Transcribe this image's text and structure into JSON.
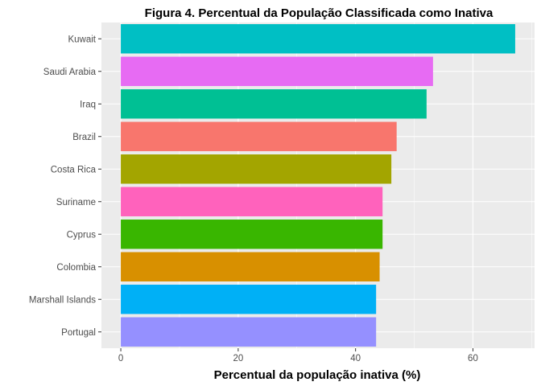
{
  "chart_data": {
    "type": "bar",
    "orientation": "horizontal",
    "title": "Figura 4. Percentual da População Classificada como Inativa",
    "xlabel": "Percentual da população inativa (%)",
    "ylabel": "",
    "categories": [
      "Kuwait",
      "Saudi Arabia",
      "Iraq",
      "Brazil",
      "Costa Rica",
      "Suriname",
      "Cyprus",
      "Colombia",
      "Marshall Islands",
      "Portugal"
    ],
    "values": [
      67.2,
      53.2,
      52.1,
      47.0,
      46.1,
      44.6,
      44.6,
      44.1,
      43.5,
      43.5
    ],
    "colors": [
      "#00BFC4",
      "#E76BF3",
      "#00C094",
      "#F8766D",
      "#A3A500",
      "#FF62BC",
      "#39B600",
      "#D89000",
      "#00B0F6",
      "#9590FF"
    ],
    "xlim": [
      -3.3,
      70.5
    ],
    "xticks": [
      0,
      20,
      40,
      60
    ],
    "grid": true,
    "legend": "none",
    "panel_background": "#EBEBEB"
  }
}
